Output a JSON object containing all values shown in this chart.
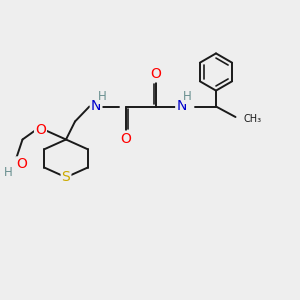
{
  "bg_color": "#eeeeee",
  "bond_color": "#1a1a1a",
  "bond_width": 1.4,
  "atom_colors": {
    "O": "#ff0000",
    "N": "#0000cc",
    "S": "#ccaa00",
    "H": "#6a9090",
    "C": "#1a1a1a"
  },
  "font_size": 8.5
}
